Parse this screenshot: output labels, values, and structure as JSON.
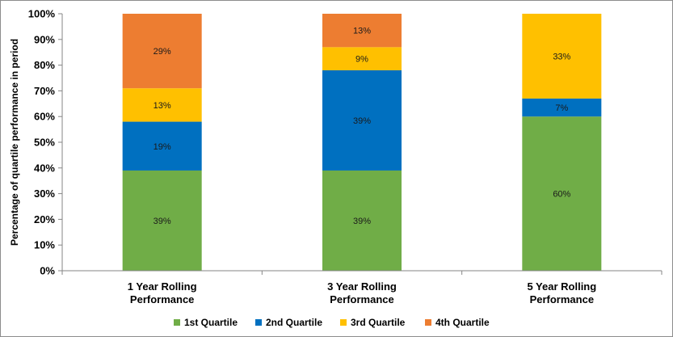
{
  "chart_data": {
    "type": "bar",
    "stacked": true,
    "percent_stacked": true,
    "categories": [
      [
        "1 Year Rolling",
        "Performance"
      ],
      [
        "3 Year Rolling",
        "Performance"
      ],
      [
        "5 Year Rolling",
        "Performance"
      ]
    ],
    "series": [
      {
        "name": "1st Quartile",
        "color": "#70ad47",
        "values": [
          39,
          39,
          60
        ],
        "labels": [
          "39%",
          "39%",
          "60%"
        ]
      },
      {
        "name": "2nd Quartile",
        "color": "#0070c0",
        "values": [
          19,
          39,
          7
        ],
        "labels": [
          "19%",
          "39%",
          "7%"
        ]
      },
      {
        "name": "3rd Quartile",
        "color": "#ffc000",
        "values": [
          13,
          9,
          33
        ],
        "labels": [
          "13%",
          "9%",
          "33%"
        ]
      },
      {
        "name": "4th Quartile",
        "color": "#ed7d31",
        "values": [
          29,
          13,
          0
        ],
        "labels": [
          "29%",
          "13%",
          ""
        ]
      }
    ],
    "title": "",
    "xlabel": "",
    "ylabel": "Percentage of quartile performance in period",
    "ylim": [
      0,
      100
    ],
    "yticks": [
      "0%",
      "10%",
      "20%",
      "30%",
      "40%",
      "50%",
      "60%",
      "70%",
      "80%",
      "90%",
      "100%"
    ],
    "grid": false,
    "legend": "bottom"
  }
}
